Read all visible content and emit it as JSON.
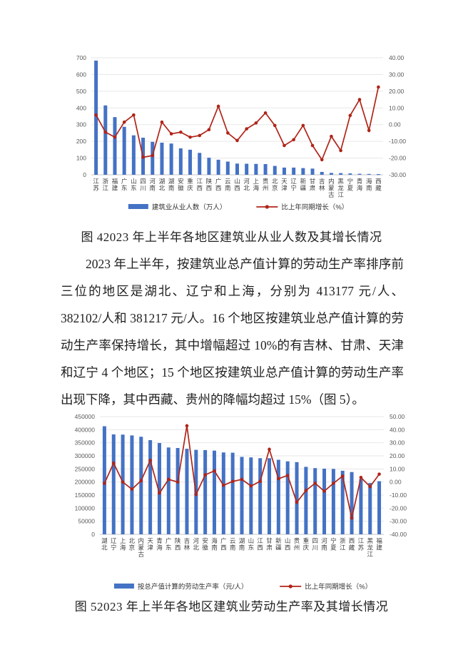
{
  "page": {
    "figure4_caption": "图 42023 年上半年各地区建筑业从业人数及其增长情况",
    "figure5_caption": "图 52023 年上半年各地区建筑业劳动生产率及其增长情况",
    "paragraph": "2023 年上半年，按建筑业总产值计算的劳动生产率排序前三位的地区是湖北、辽宁和上海，分别为 413177 元/人、382102/人和 381217 元/人。16 个地区按建筑业总产值计算的劳动生产率保持增长，其中增幅超过 10%的有吉林、甘肃、天津和辽宁 4 个地区；15 个地区按建筑业总产值计算的劳动生产率出现下降，其中西藏、贵州的降幅均超过 15%（图 5）。"
  },
  "colors": {
    "bar": "#4472C4",
    "line": "#B02418",
    "grid": "#E7E7E7",
    "zero_axis": "#C6C6C6",
    "axis_text": "#595959",
    "category_text": "#404040"
  },
  "chart_data": [
    {
      "type": "bar",
      "subtype": "combo-bar-line-dual-axis",
      "title": "",
      "categories": [
        "江苏",
        "浙江",
        "福建",
        "广东",
        "山东",
        "四川",
        "河南",
        "湖北",
        "湖南",
        "安徽",
        "重庆",
        "江西",
        "陕西",
        "广西",
        "云南",
        "山西",
        "河北",
        "上海",
        "贵州",
        "北京",
        "天津",
        "辽宁",
        "新疆",
        "甘肃",
        "吉林",
        "内蒙古",
        "黑龙江",
        "宁夏",
        "青海",
        "海南",
        "西藏"
      ],
      "series": [
        {
          "name": "建筑业从业人数（万人）",
          "type": "bar",
          "axis": "left",
          "values": [
            683,
            415,
            345,
            287,
            236,
            222,
            197,
            192,
            187,
            158,
            150,
            131,
            102,
            90,
            79,
            67,
            66,
            65,
            64,
            53,
            43,
            43,
            40,
            37,
            17,
            11,
            10,
            8,
            6,
            5,
            4
          ]
        },
        {
          "name": "比上年同期增长（%）",
          "type": "line",
          "axis": "right",
          "values": [
            5.8,
            -4.5,
            -7.5,
            1.5,
            5.8,
            -19.5,
            -18.5,
            1.5,
            -5.5,
            -4.5,
            -7.5,
            -6.5,
            -3.0,
            11.0,
            -5.0,
            -9.5,
            -2.5,
            1.0,
            7.0,
            -0.5,
            -12.5,
            -9.0,
            -0.5,
            -12.5,
            -21.0,
            -7.0,
            -15.5,
            5.5,
            15.0,
            -3.5,
            22.5
          ]
        }
      ],
      "left_axis": {
        "min": 0,
        "max": 700,
        "step": 100,
        "labels": [
          "700",
          "600",
          "500",
          "400",
          "300",
          "200",
          "100",
          "0"
        ]
      },
      "right_axis": {
        "min": -30,
        "max": 40,
        "step": 10,
        "labels": [
          "40.00",
          "30.00",
          "20.00",
          "10.00",
          "0.00",
          "-10.00",
          "-20.00",
          "-30.00"
        ]
      },
      "grid": true,
      "legend_position": "bottom"
    },
    {
      "type": "bar",
      "subtype": "combo-bar-line-dual-axis",
      "title": "",
      "categories": [
        "湖北",
        "辽宁",
        "上海",
        "北京",
        "内蒙古",
        "天津",
        "青海",
        "广东",
        "陕西",
        "吉林",
        "河北",
        "安徽",
        "海南",
        "广西",
        "云南",
        "湖南",
        "山东",
        "江西",
        "甘肃",
        "新疆",
        "山西",
        "贵州",
        "重庆",
        "四川",
        "河南",
        "宁夏",
        "浙江",
        "西藏",
        "江苏",
        "黑龙江",
        "福建"
      ],
      "series": [
        {
          "name": "按总产值计算的劳动生产率（元/人）",
          "type": "bar",
          "axis": "left",
          "values": [
            413177,
            382102,
            381217,
            378000,
            373000,
            360000,
            349000,
            332000,
            330000,
            327000,
            323000,
            322000,
            320000,
            313000,
            312000,
            296000,
            294000,
            291000,
            291000,
            285000,
            279000,
            276000,
            258000,
            253000,
            251000,
            250000,
            243000,
            238000,
            211000,
            196000,
            203000
          ]
        },
        {
          "name": "比上年同期增长（%）",
          "type": "line",
          "axis": "right",
          "values": [
            -1.0,
            14.5,
            0.0,
            -5.5,
            1.0,
            16.5,
            -8.5,
            2.0,
            0.0,
            43.0,
            -9.5,
            5.5,
            8.5,
            -2.5,
            0.5,
            2.0,
            -3.0,
            0.5,
            25.0,
            2.5,
            5.0,
            -15.5,
            -6.5,
            -1.0,
            -7.0,
            -1.0,
            4.5,
            -27.5,
            3.5,
            -3.5,
            6.0
          ]
        }
      ],
      "left_axis": {
        "min": 0,
        "max": 450000,
        "step": 50000,
        "labels": [
          "450000",
          "400000",
          "350000",
          "300000",
          "250000",
          "200000",
          "150000",
          "100000",
          "50000",
          "0"
        ]
      },
      "right_axis": {
        "min": -40,
        "max": 50,
        "step": 10,
        "labels": [
          "50.00",
          "40.00",
          "30.00",
          "20.00",
          "10.00",
          "0.00",
          "-10.00",
          "-20.00",
          "-30.00",
          "-40.00"
        ]
      },
      "grid": true,
      "legend_position": "bottom"
    }
  ]
}
